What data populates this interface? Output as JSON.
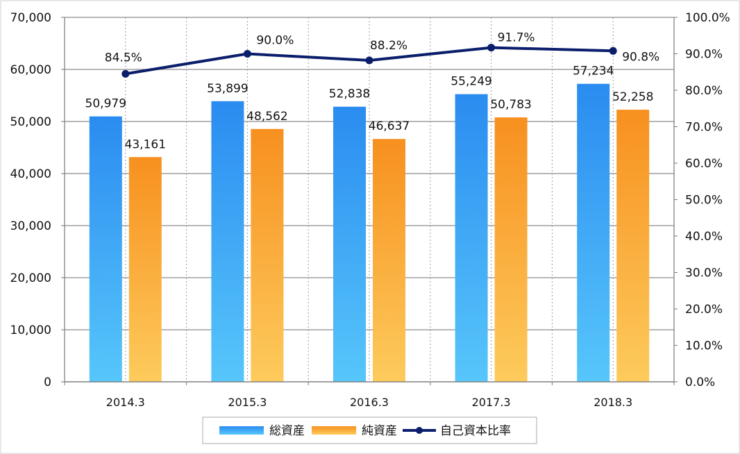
{
  "chart_data": {
    "type": "bar",
    "categories": [
      "2014.3",
      "2015.3",
      "2016.3",
      "2017.3",
      "2018.3"
    ],
    "series": [
      {
        "name": "総資産",
        "type": "bar",
        "axis": "left",
        "values": [
          50979,
          53899,
          52838,
          55249,
          57234
        ],
        "labels": [
          "50,979",
          "53,899",
          "52,838",
          "55,249",
          "57,234"
        ],
        "color_top": "#2a8cf0",
        "color_bottom": "#57c6fb"
      },
      {
        "name": "純資産",
        "type": "bar",
        "axis": "left",
        "values": [
          43161,
          48562,
          46637,
          50783,
          52258
        ],
        "labels": [
          "43,161",
          "48,562",
          "46,637",
          "50,783",
          "52,258"
        ],
        "color_top": "#f7901f",
        "color_bottom": "#fdcb5c"
      },
      {
        "name": "自己資本比率",
        "type": "line",
        "axis": "right",
        "values": [
          84.5,
          90.0,
          88.2,
          91.7,
          90.8
        ],
        "labels": [
          "84.5%",
          "90.0%",
          "88.2%",
          "91.7%",
          "90.8%"
        ],
        "color": "#0b1e6b"
      }
    ],
    "y_left": {
      "min": 0,
      "max": 70000,
      "ticks": [
        "0",
        "10,000",
        "20,000",
        "30,000",
        "40,000",
        "50,000",
        "60,000",
        "70,000"
      ]
    },
    "y_right": {
      "min": 0,
      "max": 100,
      "ticks": [
        "0.0%",
        "10.0%",
        "20.0%",
        "30.0%",
        "40.0%",
        "50.0%",
        "60.0%",
        "70.0%",
        "80.0%",
        "90.0%",
        "100.0%"
      ]
    },
    "grid": true,
    "legend_position": "bottom",
    "title": "",
    "xlabel": "",
    "ylabel": ""
  }
}
